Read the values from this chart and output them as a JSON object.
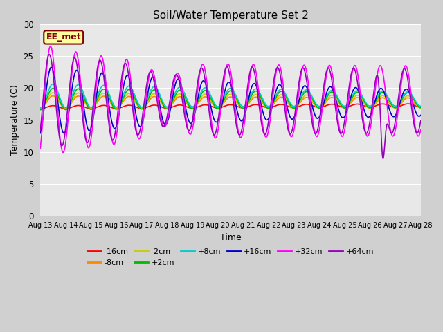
{
  "title": "Soil/Water Temperature Set 2",
  "xlabel": "Time",
  "ylabel": "Temperature (C)",
  "ylim": [
    0,
    30
  ],
  "background_color": "#e8e8e8",
  "fig_bg_color": "#d0d0d0",
  "annotation_text": "EE_met",
  "annotation_box_color": "#ffffa0",
  "annotation_border_color": "#800000",
  "series": {
    "-16cm": {
      "color": "#ff0000",
      "linewidth": 1.2
    },
    "-8cm": {
      "color": "#ff8800",
      "linewidth": 1.2
    },
    "-2cm": {
      "color": "#cccc00",
      "linewidth": 1.2
    },
    "+2cm": {
      "color": "#00bb00",
      "linewidth": 1.2
    },
    "+8cm": {
      "color": "#00cccc",
      "linewidth": 1.2
    },
    "+16cm": {
      "color": "#0000cc",
      "linewidth": 1.2
    },
    "+32cm": {
      "color": "#ff00ff",
      "linewidth": 1.2
    },
    "+64cm": {
      "color": "#9900bb",
      "linewidth": 1.2
    }
  },
  "xtick_labels": [
    "Aug 13",
    "Aug 14",
    "Aug 15",
    "Aug 16",
    "Aug 17",
    "Aug 18",
    "Aug 19",
    "Aug 20",
    "Aug 21",
    "Aug 22",
    "Aug 23",
    "Aug 24",
    "Aug 25",
    "Aug 26",
    "Aug 27",
    "Aug 28"
  ],
  "ytick_labels": [
    0,
    5,
    10,
    15,
    20,
    25,
    30
  ],
  "n_days": 15
}
